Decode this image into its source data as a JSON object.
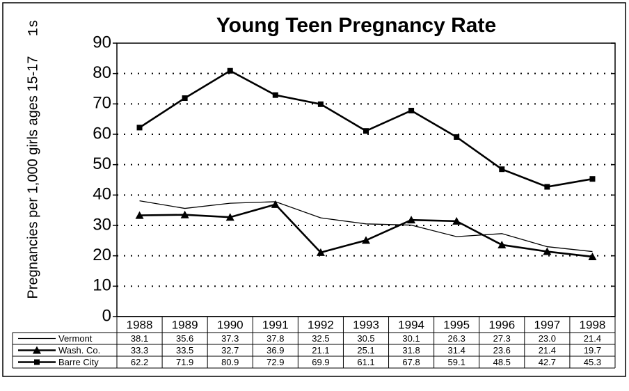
{
  "chart_data": {
    "type": "line",
    "title": "Young Teen Pregnancy Rate",
    "y_label": "Pregnancies per 1,000 girls ages 15-17",
    "annotations": [
      "1s"
    ],
    "categories": [
      "1988",
      "1989",
      "1990",
      "1991",
      "1992",
      "1993",
      "1994",
      "1995",
      "1996",
      "1997",
      "1998"
    ],
    "series": [
      {
        "name": "Vermont",
        "color": "#000000",
        "marker": "none",
        "line_width": 1.3,
        "values": [
          38.1,
          35.6,
          37.3,
          37.8,
          32.5,
          30.5,
          30.1,
          26.3,
          27.3,
          23.0,
          21.4
        ],
        "value_labels": [
          "38.1",
          "35.6",
          "37.3",
          "37.8",
          "32.5",
          "30.5",
          "30.1",
          "26.3",
          "27.3",
          "23.0",
          "21.4"
        ]
      },
      {
        "name": "Wash. Co.",
        "color": "#000000",
        "marker": "triangle",
        "line_width": 2.6,
        "values": [
          33.3,
          33.5,
          32.7,
          36.9,
          21.1,
          25.1,
          31.8,
          31.4,
          23.6,
          21.4,
          19.7
        ],
        "value_labels": [
          "33.3",
          "33.5",
          "32.7",
          "36.9",
          "21.1",
          "25.1",
          "31.8",
          "31.4",
          "23.6",
          "21.4",
          "19.7"
        ]
      },
      {
        "name": "Barre City",
        "color": "#000000",
        "marker": "square",
        "line_width": 2.6,
        "values": [
          62.2,
          71.9,
          80.9,
          72.9,
          69.9,
          61.1,
          67.8,
          59.1,
          48.5,
          42.7,
          45.3
        ],
        "value_labels": [
          "62.2",
          "71.9",
          "80.9",
          "72.9",
          "69.9",
          "61.1",
          "67.8",
          "59.1",
          "48.5",
          "42.7",
          "45.3"
        ]
      }
    ],
    "ylim": [
      0,
      90
    ],
    "yticks": [
      0,
      10,
      20,
      30,
      40,
      50,
      60,
      70,
      80,
      90
    ],
    "grid": true
  }
}
